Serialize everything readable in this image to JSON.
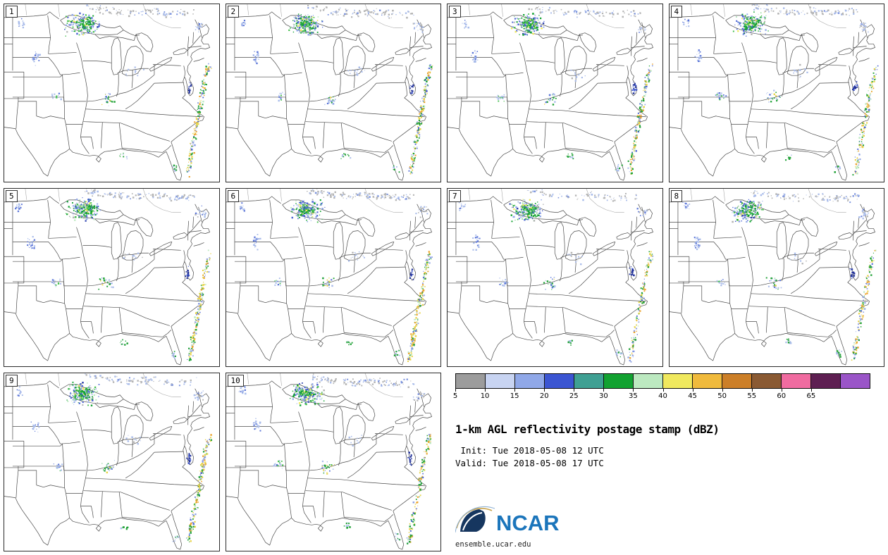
{
  "figure": {
    "title": "1-km AGL reflectivity postage stamp (dBZ)",
    "init_label": " Init: Tue 2018-05-08 12 UTC",
    "valid_label": "Valid: Tue 2018-05-08 17 UTC",
    "logo_text": "NCAR",
    "logo_url": "ensemble.ucar.edu"
  },
  "panels": [
    {
      "label": "1"
    },
    {
      "label": "2"
    },
    {
      "label": "3"
    },
    {
      "label": "4"
    },
    {
      "label": "5"
    },
    {
      "label": "6"
    },
    {
      "label": "7"
    },
    {
      "label": "8"
    },
    {
      "label": "9"
    },
    {
      "label": "10"
    }
  ],
  "colorbar": {
    "units": "dBZ",
    "ticks": [
      "5",
      "10",
      "15",
      "20",
      "25",
      "30",
      "35",
      "40",
      "45",
      "50",
      "55",
      "60",
      "65"
    ],
    "colors": [
      "#9c9c9c",
      "#c8d4f2",
      "#90a8e8",
      "#3b55d2",
      "#3fa093",
      "#12a231",
      "#bce9c0",
      "#f0e95e",
      "#f0ba3c",
      "#cc7f28",
      "#8a5a33",
      "#f06ba0",
      "#5e1f52",
      "#9a55c8"
    ]
  },
  "chart_data": {
    "type": "heatmap",
    "subtype": "ensemble_reflectivity_postage_stamps",
    "title": "1-km AGL reflectivity postage stamp (dBZ)",
    "variable": "1-km AGL reflectivity",
    "units": "dBZ",
    "init": "Tue 2018-05-08 12 UTC",
    "valid": "Tue 2018-05-08 17 UTC",
    "members": [
      1,
      2,
      3,
      4,
      5,
      6,
      7,
      8,
      9,
      10
    ],
    "region": "central and eastern United States",
    "scale_dbz": [
      5,
      10,
      15,
      20,
      25,
      30,
      35,
      40,
      45,
      50,
      55,
      60,
      65
    ],
    "scale_colors": [
      "#9c9c9c",
      "#c8d4f2",
      "#90a8e8",
      "#3b55d2",
      "#3fa093",
      "#12a231",
      "#bce9c0",
      "#f0e95e",
      "#f0ba3c",
      "#cc7f28",
      "#8a5a33",
      "#f06ba0",
      "#5e1f52",
      "#9a55c8"
    ],
    "echo_clusters": [
      {
        "region": "upper-midwest-convective-cluster",
        "kind": "blob",
        "cx": 0.37,
        "cy": 0.115,
        "rx": 0.085,
        "ry": 0.07,
        "n": 150,
        "palette": [
          [
            "#90a8e8",
            4
          ],
          [
            "#4a63d4",
            3
          ],
          [
            "#12a231",
            3
          ],
          [
            "#44bf4c",
            2
          ],
          [
            "#bce9c0",
            1
          ],
          [
            "#efe85c",
            1
          ],
          [
            "#b0b0b0",
            2
          ],
          [
            "#2b3fae",
            1
          ]
        ]
      },
      {
        "region": "upper-midwest-core",
        "kind": "blob",
        "cx": 0.375,
        "cy": 0.11,
        "rx": 0.045,
        "ry": 0.045,
        "n": 60,
        "palette": [
          [
            "#12a231",
            4
          ],
          [
            "#44bf4c",
            2
          ],
          [
            "#efe85c",
            1
          ],
          [
            "#4a63d4",
            1
          ]
        ]
      },
      {
        "region": "canada-light-echo-band",
        "kind": "band",
        "pts": [
          [
            0.38,
            0.01
          ],
          [
            0.48,
            0.03
          ],
          [
            0.58,
            0.045
          ],
          [
            0.68,
            0.035
          ],
          [
            0.78,
            0.05
          ],
          [
            0.88,
            0.04
          ]
        ],
        "spread": 0.018,
        "n": 100,
        "palette": [
          [
            "#b4b4b4",
            5
          ],
          [
            "#a9bcea",
            3
          ],
          [
            "#7b93de",
            1
          ]
        ]
      },
      {
        "region": "east-coast-storm-line",
        "kind": "band",
        "pts": [
          [
            0.955,
            0.345
          ],
          [
            0.93,
            0.45
          ],
          [
            0.915,
            0.555
          ],
          [
            0.9,
            0.655
          ],
          [
            0.885,
            0.755
          ],
          [
            0.868,
            0.86
          ],
          [
            0.855,
            0.955
          ]
        ],
        "spread": 0.014,
        "n": 160,
        "palette": [
          [
            "#22a238",
            3
          ],
          [
            "#e8d44a",
            3
          ],
          [
            "#eda42e",
            2
          ],
          [
            "#8ca0e4",
            2
          ],
          [
            "#4a63d4",
            1
          ],
          [
            "#bce9c0",
            1
          ]
        ]
      },
      {
        "region": "high-plains-showers",
        "kind": "blob",
        "cx": 0.135,
        "cy": 0.295,
        "rx": 0.022,
        "ry": 0.045,
        "n": 20,
        "palette": [
          [
            "#a9bcea",
            3
          ],
          [
            "#5c76d8",
            2
          ]
        ]
      },
      {
        "region": "central-plains-showers",
        "kind": "blob",
        "cx": 0.245,
        "cy": 0.52,
        "rx": 0.028,
        "ry": 0.028,
        "n": 14,
        "palette": [
          [
            "#a9bcea",
            3
          ],
          [
            "#5c76d8",
            1
          ],
          [
            "#44bf4c",
            1
          ]
        ]
      },
      {
        "region": "mid-mississippi-valley-showers",
        "kind": "blob",
        "cx": 0.475,
        "cy": 0.53,
        "rx": 0.04,
        "ry": 0.045,
        "n": 22,
        "palette": [
          [
            "#a9bcea",
            2
          ],
          [
            "#22a238",
            2
          ],
          [
            "#e8d44a",
            1
          ],
          [
            "#5c76d8",
            1
          ]
        ]
      },
      {
        "region": "northwest-corner-specks",
        "kind": "blob",
        "cx": 0.07,
        "cy": 0.1,
        "rx": 0.02,
        "ry": 0.03,
        "n": 12,
        "palette": [
          [
            "#a9bcea",
            2
          ],
          [
            "#5c76d8",
            1
          ]
        ]
      },
      {
        "region": "chesapeake-echo",
        "kind": "blob",
        "cx": 0.858,
        "cy": 0.475,
        "rx": 0.012,
        "ry": 0.04,
        "n": 16,
        "palette": [
          [
            "#22329b",
            3
          ],
          [
            "#4a63d4",
            1
          ]
        ]
      },
      {
        "region": "florida-specks",
        "kind": "blob",
        "cx": 0.79,
        "cy": 0.92,
        "rx": 0.02,
        "ry": 0.03,
        "n": 10,
        "palette": [
          [
            "#a9bcea",
            2
          ],
          [
            "#22a238",
            1
          ]
        ]
      },
      {
        "region": "new-england-specks",
        "kind": "blob",
        "cx": 0.905,
        "cy": 0.13,
        "rx": 0.03,
        "ry": 0.035,
        "n": 18,
        "palette": [
          [
            "#a9bcea",
            3
          ],
          [
            "#b4b4b4",
            2
          ],
          [
            "#5c76d8",
            1
          ]
        ]
      },
      {
        "region": "gulf-coast-specks",
        "kind": "blob",
        "cx": 0.56,
        "cy": 0.86,
        "rx": 0.025,
        "ry": 0.02,
        "n": 8,
        "palette": [
          [
            "#22a238",
            2
          ],
          [
            "#a9bcea",
            1
          ]
        ]
      },
      {
        "region": "ohio-valley-sparse",
        "kind": "blob",
        "cx": 0.6,
        "cy": 0.38,
        "rx": 0.05,
        "ry": 0.04,
        "n": 12,
        "palette": [
          [
            "#a9bcea",
            3
          ],
          [
            "#b4b4b4",
            1
          ]
        ]
      }
    ]
  }
}
